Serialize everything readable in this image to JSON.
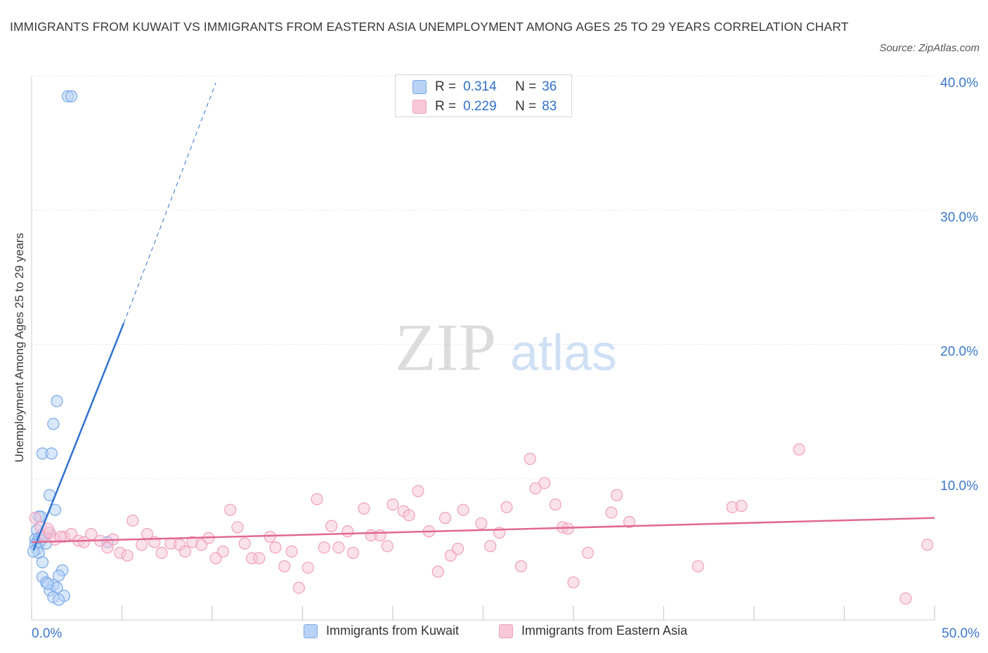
{
  "title": "IMMIGRANTS FROM KUWAIT VS IMMIGRANTS FROM EASTERN ASIA UNEMPLOYMENT AMONG AGES 25 TO 29 YEARS CORRELATION CHART",
  "source": "Source: ZipAtlas.com",
  "watermark": {
    "zip": "ZIP",
    "atlas": "atlas"
  },
  "stats": {
    "r_label": "R =",
    "n_label": "N =",
    "rows": [
      {
        "r": "0.314",
        "n": "36"
      },
      {
        "r": "0.229",
        "n": "83"
      }
    ]
  },
  "chart_data": {
    "type": "scatter",
    "title": "IMMIGRANTS FROM KUWAIT VS IMMIGRANTS FROM EASTERN ASIA UNEMPLOYMENT AMONG AGES 25 TO 29 YEARS CORRELATION CHART",
    "xlabel": "",
    "ylabel": "Unemployment Among Ages 25 to 29 years",
    "xlim": [
      0,
      50
    ],
    "ylim": [
      0,
      40
    ],
    "x_tick_labels": [
      {
        "value": 0,
        "label": "0.0%"
      },
      {
        "value": 50,
        "label": "50.0%"
      }
    ],
    "y_tick_labels": [
      {
        "value": 10,
        "label": "10.0%"
      },
      {
        "value": 20,
        "label": "20.0%"
      },
      {
        "value": 30,
        "label": "30.0%"
      },
      {
        "value": 40,
        "label": "40.0%"
      }
    ],
    "x_minor_ticks": [
      0,
      5,
      10,
      15,
      20,
      25,
      30,
      35,
      40,
      45,
      50
    ],
    "grid": true,
    "legend_position": "bottom-center",
    "series": [
      {
        "name": "Immigrants from Kuwait",
        "color": "#7aa8e8",
        "fill": "#b8d3f5",
        "line_color": "#2f72d0",
        "R": 0.314,
        "N": 36,
        "trend": {
          "x0": 0.1,
          "y0": 5.2,
          "x_solid_end": 5.1,
          "y_solid_end": 22.1,
          "x_dash_end": 10.2,
          "y_dash_end": 40.0
        },
        "points": [
          [
            2.0,
            39.0
          ],
          [
            2.2,
            39.0
          ],
          [
            1.4,
            16.3
          ],
          [
            1.2,
            14.6
          ],
          [
            0.6,
            12.4
          ],
          [
            1.1,
            12.4
          ],
          [
            1.0,
            9.3
          ],
          [
            1.3,
            8.2
          ],
          [
            0.4,
            7.7
          ],
          [
            0.5,
            7.7
          ],
          [
            0.3,
            6.7
          ],
          [
            0.6,
            6.4
          ],
          [
            1.0,
            6.5
          ],
          [
            0.2,
            6.0
          ],
          [
            0.4,
            6.1
          ],
          [
            0.6,
            6.2
          ],
          [
            0.3,
            5.8
          ],
          [
            0.8,
            5.7
          ],
          [
            0.5,
            5.9
          ],
          [
            0.2,
            5.6
          ],
          [
            0.3,
            5.3
          ],
          [
            0.4,
            5.0
          ],
          [
            0.1,
            5.1
          ],
          [
            4.2,
            5.8
          ],
          [
            0.6,
            4.3
          ],
          [
            1.7,
            3.7
          ],
          [
            0.6,
            3.2
          ],
          [
            1.5,
            3.3
          ],
          [
            0.8,
            2.8
          ],
          [
            1.2,
            2.6
          ],
          [
            1.0,
            2.2
          ],
          [
            1.4,
            2.4
          ],
          [
            1.2,
            1.7
          ],
          [
            1.8,
            1.8
          ],
          [
            1.5,
            1.5
          ],
          [
            0.9,
            2.7
          ]
        ]
      },
      {
        "name": "Immigrants from Eastern Asia",
        "color": "#f0a0bc",
        "fill": "#f8c8d8",
        "line_color": "#e06890",
        "R": 0.229,
        "N": 83,
        "trend": {
          "x0": 0.0,
          "y0": 5.8,
          "x1": 50.0,
          "y1": 7.6
        },
        "points": [
          [
            0.2,
            7.6
          ],
          [
            0.5,
            6.9
          ],
          [
            0.7,
            6.3
          ],
          [
            1.0,
            6.5
          ],
          [
            1.3,
            6.0
          ],
          [
            1.8,
            6.2
          ],
          [
            2.2,
            6.4
          ],
          [
            2.6,
            5.9
          ],
          [
            2.9,
            5.8
          ],
          [
            3.3,
            6.4
          ],
          [
            3.8,
            5.9
          ],
          [
            4.2,
            5.4
          ],
          [
            4.5,
            6.0
          ],
          [
            4.9,
            5.0
          ],
          [
            5.3,
            4.8
          ],
          [
            5.6,
            7.4
          ],
          [
            6.1,
            5.6
          ],
          [
            6.4,
            6.4
          ],
          [
            6.8,
            5.8
          ],
          [
            7.2,
            5.0
          ],
          [
            7.7,
            5.7
          ],
          [
            8.2,
            5.6
          ],
          [
            8.5,
            5.1
          ],
          [
            8.9,
            5.8
          ],
          [
            9.4,
            5.6
          ],
          [
            9.8,
            6.1
          ],
          [
            10.2,
            4.6
          ],
          [
            10.6,
            5.1
          ],
          [
            11.0,
            8.2
          ],
          [
            11.4,
            6.9
          ],
          [
            11.8,
            5.7
          ],
          [
            12.2,
            4.6
          ],
          [
            12.6,
            4.6
          ],
          [
            13.2,
            6.2
          ],
          [
            13.5,
            5.4
          ],
          [
            14.0,
            4.0
          ],
          [
            14.4,
            5.1
          ],
          [
            14.8,
            2.4
          ],
          [
            15.3,
            3.9
          ],
          [
            15.8,
            9.0
          ],
          [
            16.2,
            5.4
          ],
          [
            16.6,
            7.0
          ],
          [
            17.0,
            5.4
          ],
          [
            17.5,
            6.6
          ],
          [
            17.8,
            5.0
          ],
          [
            18.4,
            8.3
          ],
          [
            18.8,
            6.3
          ],
          [
            19.3,
            6.3
          ],
          [
            19.7,
            5.5
          ],
          [
            20.0,
            8.6
          ],
          [
            20.6,
            8.1
          ],
          [
            20.9,
            7.8
          ],
          [
            21.4,
            9.6
          ],
          [
            22.0,
            6.6
          ],
          [
            22.5,
            3.6
          ],
          [
            22.9,
            7.6
          ],
          [
            23.2,
            4.8
          ],
          [
            23.6,
            5.3
          ],
          [
            23.9,
            8.2
          ],
          [
            24.9,
            7.2
          ],
          [
            25.4,
            5.5
          ],
          [
            25.9,
            6.5
          ],
          [
            26.3,
            8.4
          ],
          [
            27.1,
            4.0
          ],
          [
            27.6,
            12.0
          ],
          [
            27.9,
            9.8
          ],
          [
            28.4,
            10.2
          ],
          [
            29.0,
            8.6
          ],
          [
            29.4,
            6.9
          ],
          [
            29.7,
            6.8
          ],
          [
            30.0,
            2.8
          ],
          [
            30.8,
            5.0
          ],
          [
            32.1,
            8.0
          ],
          [
            32.4,
            9.3
          ],
          [
            33.1,
            7.3
          ],
          [
            36.9,
            4.0
          ],
          [
            38.8,
            8.4
          ],
          [
            39.3,
            8.5
          ],
          [
            42.5,
            12.7
          ],
          [
            48.4,
            1.6
          ],
          [
            49.6,
            5.6
          ],
          [
            0.9,
            6.8
          ],
          [
            1.6,
            6.2
          ]
        ]
      }
    ]
  }
}
